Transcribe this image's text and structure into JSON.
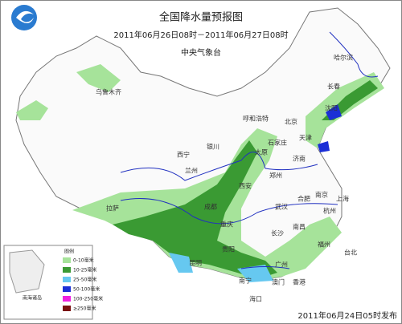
{
  "header": {
    "title": "全国降水量预报图",
    "period": "2011年06月26日08时－2011年06月27日08时",
    "issuer": "中央气象台"
  },
  "legend": {
    "title": "图例",
    "items": [
      {
        "label": "0-10毫米",
        "color": "#a6e39a"
      },
      {
        "label": "10-25毫米",
        "color": "#3a9a33"
      },
      {
        "label": "25-50毫米",
        "color": "#66c8f0"
      },
      {
        "label": "50-100毫米",
        "color": "#1b2fd6"
      },
      {
        "label": "100-250毫米",
        "color": "#f020e0"
      },
      {
        "label": "≥250毫米",
        "color": "#7a1010"
      }
    ]
  },
  "cities": [
    "哈尔滨",
    "长春",
    "沈阳",
    "乌鲁木齐",
    "呼和浩特",
    "北京",
    "天津",
    "石家庄",
    "太原",
    "银川",
    "西宁",
    "兰州",
    "济南",
    "郑州",
    "西安",
    "合肥",
    "南京",
    "上海",
    "武汉",
    "杭州",
    "成都",
    "重庆",
    "拉萨",
    "长沙",
    "南昌",
    "贵阳",
    "福州",
    "台北",
    "昆明",
    "广州",
    "南宁",
    "海口",
    "香港",
    "澳门"
  ],
  "inset_label": "南海诸岛",
  "footer": "2011年06月24日05时发布"
}
